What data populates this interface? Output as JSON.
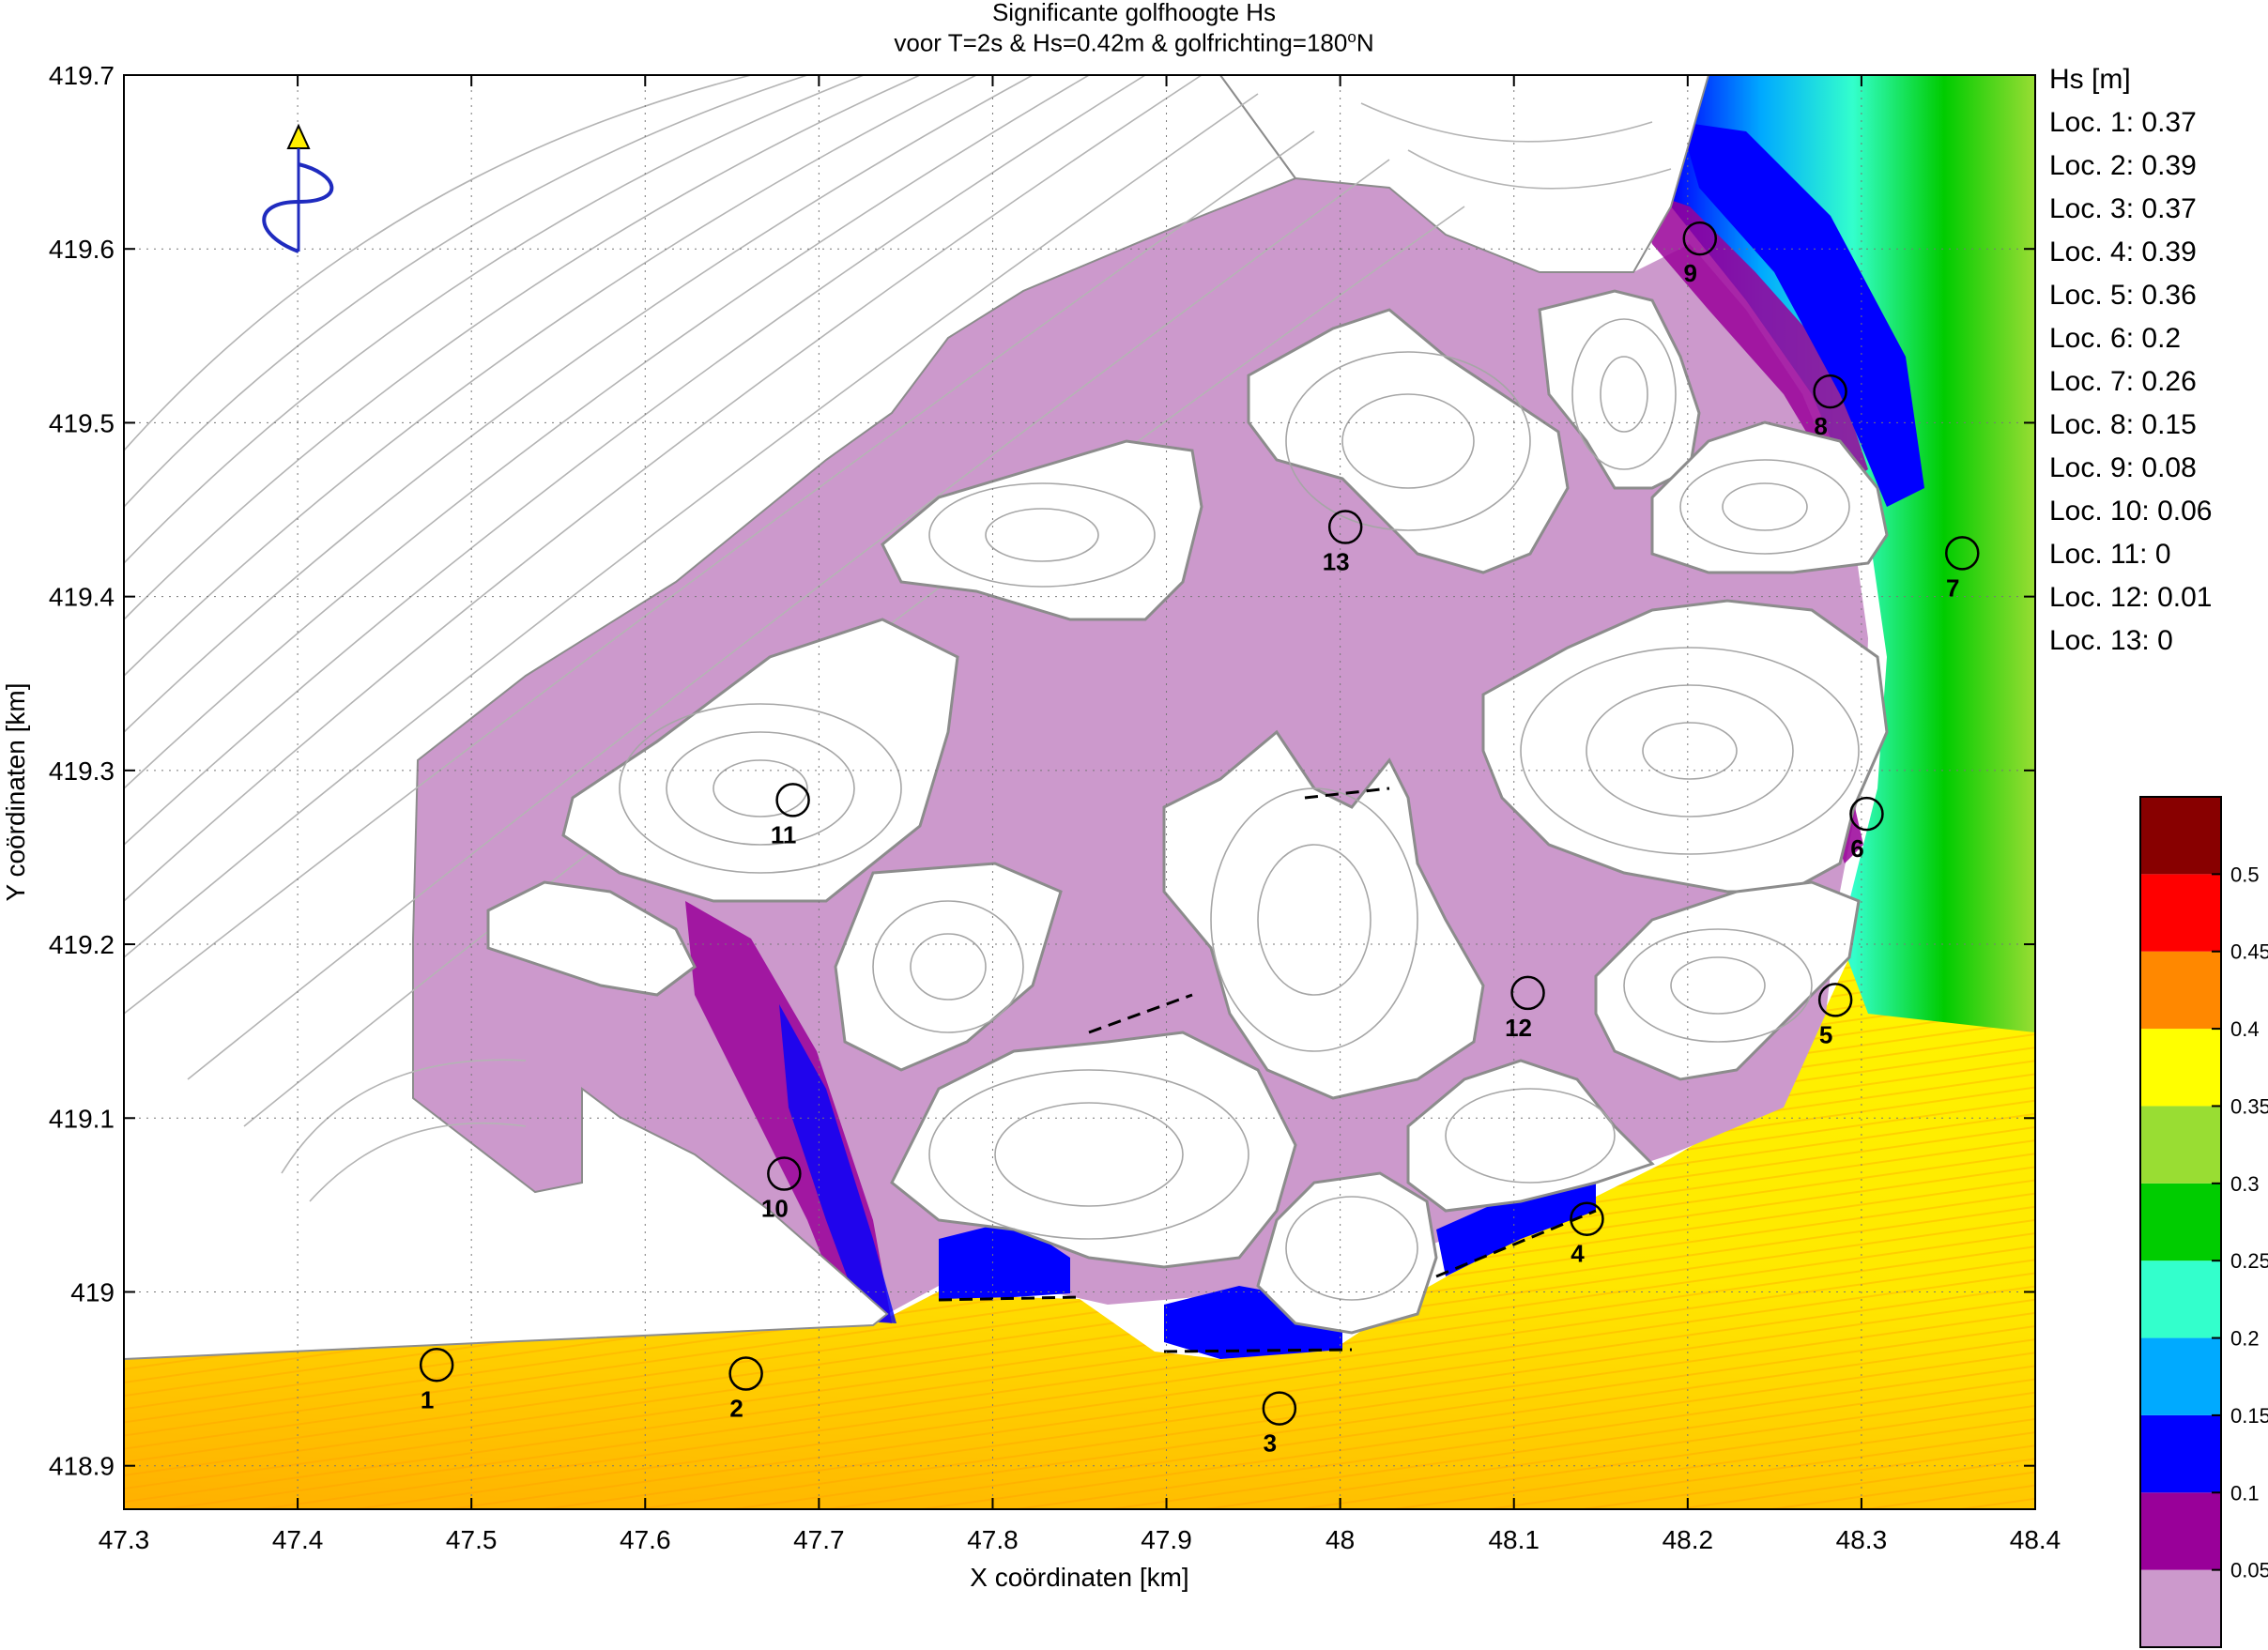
{
  "title": {
    "line1": "Significante golfhoogte Hs",
    "line2_prefix": "voor T=2s & Hs=0.42m & golfrichting=180",
    "line2_sup": "o",
    "line2_suffix": "N"
  },
  "legend": {
    "title": "Hs [m]",
    "entries": [
      "Loc. 1: 0.37",
      "Loc. 2: 0.39",
      "Loc. 3: 0.37",
      "Loc. 4: 0.39",
      "Loc. 5: 0.36",
      "Loc. 6: 0.2",
      "Loc. 7: 0.26",
      "Loc. 8: 0.15",
      "Loc. 9: 0.08",
      "Loc. 10: 0.06",
      "Loc. 11: 0",
      "Loc. 12: 0.01",
      "Loc. 13: 0"
    ]
  },
  "colors": {
    "sheltered": "#cc99cc",
    "land_line": "#9a9a9a",
    "cb_colors": [
      "#cc99cc",
      "#990099",
      "#0000ff",
      "#00aaff",
      "#33ffcc",
      "#00cc00",
      "#99dd33",
      "#ffff00",
      "#ff8800",
      "#ff0000",
      "#880000"
    ],
    "wave_arrow": "#1f2bbf",
    "north_marker": "#ffee00"
  },
  "chart_data": {
    "type": "heatmap",
    "title": "Significante golfhoogte Hs voor T=2s & Hs=0.42m & golfrichting=180°N",
    "xlabel": "X coördinaten [km]",
    "ylabel": "Y coördinaten [km]",
    "xlim": [
      47.3,
      48.4
    ],
    "ylim": [
      418.875,
      419.7
    ],
    "xticks": [
      "47.3",
      "47.4",
      "47.5",
      "47.6",
      "47.7",
      "47.8",
      "47.9",
      "48",
      "48.1",
      "48.2",
      "48.3",
      "48.4"
    ],
    "yticks": [
      "418.9",
      "419",
      "419.1",
      "419.2",
      "419.3",
      "419.4",
      "419.5",
      "419.6",
      "419.7"
    ],
    "grid": true,
    "colorbar": {
      "label": "Hs [m]",
      "levels": [
        0,
        0.05,
        0.1,
        0.15,
        0.2,
        0.25,
        0.3,
        0.35,
        0.4,
        0.45,
        0.5,
        0.55
      ],
      "tick_labels": [
        "0.05",
        "0.1",
        "0.15",
        "0.2",
        "0.25",
        "0.3",
        "0.35",
        "0.4",
        "0.45",
        "0.5"
      ]
    },
    "locations": [
      {
        "id": "1",
        "x": 47.48,
        "y": 418.958,
        "hs": 0.37
      },
      {
        "id": "2",
        "x": 47.658,
        "y": 418.953,
        "hs": 0.39
      },
      {
        "id": "3",
        "x": 47.965,
        "y": 418.933,
        "hs": 0.37
      },
      {
        "id": "4",
        "x": 48.142,
        "y": 419.042,
        "hs": 0.39
      },
      {
        "id": "5",
        "x": 48.285,
        "y": 419.168,
        "hs": 0.36
      },
      {
        "id": "6",
        "x": 48.303,
        "y": 419.275,
        "hs": 0.2
      },
      {
        "id": "7",
        "x": 48.358,
        "y": 419.425,
        "hs": 0.26
      },
      {
        "id": "8",
        "x": 48.282,
        "y": 419.518,
        "hs": 0.15
      },
      {
        "id": "9",
        "x": 48.207,
        "y": 419.606,
        "hs": 0.08
      },
      {
        "id": "10",
        "x": 47.68,
        "y": 419.068,
        "hs": 0.06
      },
      {
        "id": "11",
        "x": 47.685,
        "y": 419.283,
        "hs": 0
      },
      {
        "id": "12",
        "x": 48.108,
        "y": 419.172,
        "hs": 0.01
      },
      {
        "id": "13",
        "x": 48.003,
        "y": 419.44,
        "hs": 0
      }
    ]
  }
}
